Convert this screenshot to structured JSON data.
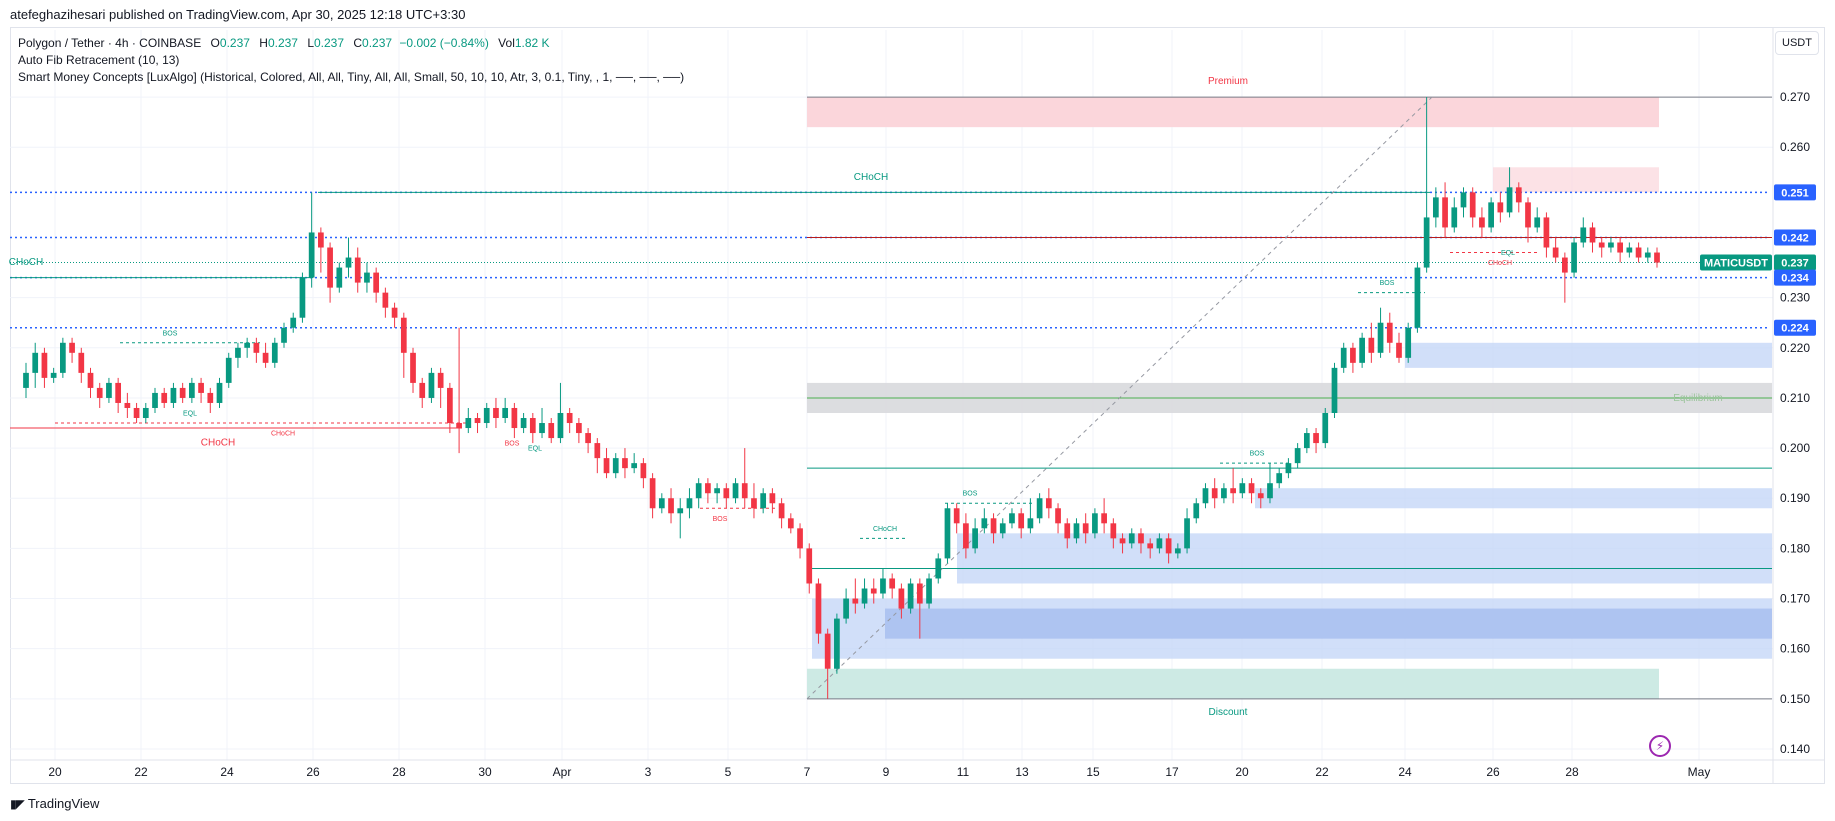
{
  "publisher": "atefeghazihesari published on TradingView.com, Apr 30, 2025 12:18 UTC+3:30",
  "legend": {
    "symbol_line": "Polygon / Tether · 4h · COINBASE",
    "o_label": "O",
    "o": "0.237",
    "h_label": "H",
    "h": "0.237",
    "l_label": "L",
    "l": "0.237",
    "c_label": "C",
    "c": "0.237",
    "change": "−0.002 (−0.84%)",
    "vol_label": "Vol",
    "vol": "1.82 K",
    "indicator1": "Auto Fib Retracement (10, 13)",
    "indicator2": "Smart Money Concepts [LuxAlgo] (Historical, Colored, All, All, Tiny, All, All, Small, 50, 10, 10, Atr, 3, 0.1, Tiny, , 1, ──, ──, ──)"
  },
  "currency_button": "USDT",
  "brand": "TradingView",
  "colors": {
    "up": "#089981",
    "down": "#f23645",
    "blue_line": "#2962ff",
    "ob_blue": "#c5d7f8",
    "premium": "#fbd6db",
    "discount": "#cdeae4"
  },
  "chart_data": {
    "type": "candlestick",
    "symbol": "MATICUSDT",
    "y_range": [
      0.138,
      0.275
    ],
    "y_ticks": [
      "0.270",
      "0.260",
      "0.230",
      "0.220",
      "0.210",
      "0.200",
      "0.190",
      "0.180",
      "0.170",
      "0.160",
      "0.150",
      "0.140"
    ],
    "x_ticks": [
      "20",
      "22",
      "24",
      "26",
      "28",
      "30",
      "Apr",
      "3",
      "5",
      "7",
      "9",
      "11",
      "13",
      "15",
      "17",
      "20",
      "22",
      "24",
      "26",
      "28",
      "May"
    ],
    "price_labels": [
      {
        "text": "0.251",
        "value": 0.251,
        "color": "#2962ff"
      },
      {
        "text": "0.242",
        "value": 0.242,
        "color": "#2962ff"
      },
      {
        "text": "MATICUSDT",
        "value": 0.237,
        "color": "#089981"
      },
      {
        "text": "0.237",
        "value": 0.237,
        "color": "#089981"
      },
      {
        "text": "0.234",
        "value": 0.234,
        "color": "#2962ff"
      },
      {
        "text": "0.224",
        "value": 0.224,
        "color": "#2962ff"
      }
    ],
    "zone_labels": [
      "Premium",
      "Discount",
      "Equilibrium"
    ],
    "structure_labels": [
      "CHoCH",
      "CHoCH",
      "CHoCH",
      "CHoCH",
      "CHoCH",
      "CHoCH",
      "BOS",
      "BOS",
      "BOS",
      "BOS",
      "BOS",
      "BOS",
      "EQL",
      "EQL",
      "EQL"
    ],
    "candles": [
      [
        0.212,
        0.215,
        0.21,
        0.217
      ],
      [
        0.215,
        0.219,
        0.212,
        0.221
      ],
      [
        0.219,
        0.214,
        0.212,
        0.22
      ],
      [
        0.214,
        0.215,
        0.213,
        0.216
      ],
      [
        0.215,
        0.221,
        0.214,
        0.222
      ],
      [
        0.221,
        0.219,
        0.217,
        0.222
      ],
      [
        0.219,
        0.215,
        0.213,
        0.22
      ],
      [
        0.215,
        0.212,
        0.21,
        0.216
      ],
      [
        0.212,
        0.21,
        0.208,
        0.213
      ],
      [
        0.21,
        0.213,
        0.209,
        0.214
      ],
      [
        0.213,
        0.209,
        0.207,
        0.214
      ],
      [
        0.209,
        0.208,
        0.206,
        0.211
      ],
      [
        0.208,
        0.206,
        0.205,
        0.209
      ],
      [
        0.206,
        0.208,
        0.205,
        0.209
      ],
      [
        0.208,
        0.211,
        0.207,
        0.212
      ],
      [
        0.211,
        0.209,
        0.208,
        0.212
      ],
      [
        0.209,
        0.212,
        0.208,
        0.213
      ],
      [
        0.212,
        0.21,
        0.209,
        0.213
      ],
      [
        0.21,
        0.213,
        0.209,
        0.214
      ],
      [
        0.213,
        0.211,
        0.209,
        0.214
      ],
      [
        0.211,
        0.209,
        0.207,
        0.212
      ],
      [
        0.209,
        0.213,
        0.208,
        0.214
      ],
      [
        0.213,
        0.218,
        0.212,
        0.219
      ],
      [
        0.218,
        0.22,
        0.216,
        0.221
      ],
      [
        0.22,
        0.221,
        0.218,
        0.222
      ],
      [
        0.221,
        0.219,
        0.217,
        0.222
      ],
      [
        0.219,
        0.217,
        0.216,
        0.221
      ],
      [
        0.217,
        0.221,
        0.216,
        0.222
      ],
      [
        0.221,
        0.224,
        0.22,
        0.225
      ],
      [
        0.224,
        0.226,
        0.223,
        0.227
      ],
      [
        0.226,
        0.234,
        0.225,
        0.235
      ],
      [
        0.234,
        0.243,
        0.232,
        0.251
      ],
      [
        0.243,
        0.24,
        0.235,
        0.244
      ],
      [
        0.24,
        0.232,
        0.229,
        0.241
      ],
      [
        0.232,
        0.236,
        0.231,
        0.237
      ],
      [
        0.236,
        0.238,
        0.234,
        0.242
      ],
      [
        0.238,
        0.233,
        0.231,
        0.24
      ],
      [
        0.233,
        0.235,
        0.231,
        0.237
      ],
      [
        0.235,
        0.231,
        0.229,
        0.236
      ],
      [
        0.231,
        0.228,
        0.226,
        0.232
      ],
      [
        0.228,
        0.226,
        0.224,
        0.229
      ],
      [
        0.226,
        0.219,
        0.214,
        0.227
      ],
      [
        0.219,
        0.213,
        0.211,
        0.22
      ],
      [
        0.213,
        0.21,
        0.208,
        0.214
      ],
      [
        0.21,
        0.215,
        0.209,
        0.216
      ],
      [
        0.215,
        0.212,
        0.208,
        0.216
      ],
      [
        0.212,
        0.205,
        0.203,
        0.213
      ],
      [
        0.205,
        0.204,
        0.199,
        0.224
      ],
      [
        0.204,
        0.206,
        0.203,
        0.208
      ],
      [
        0.206,
        0.205,
        0.203,
        0.207
      ],
      [
        0.205,
        0.208,
        0.204,
        0.209
      ],
      [
        0.208,
        0.206,
        0.204,
        0.21
      ],
      [
        0.206,
        0.208,
        0.205,
        0.21
      ],
      [
        0.208,
        0.204,
        0.202,
        0.209
      ],
      [
        0.204,
        0.206,
        0.203,
        0.207
      ],
      [
        0.206,
        0.203,
        0.201,
        0.207
      ],
      [
        0.203,
        0.205,
        0.202,
        0.208
      ],
      [
        0.205,
        0.202,
        0.201,
        0.206
      ],
      [
        0.202,
        0.207,
        0.201,
        0.213
      ],
      [
        0.207,
        0.205,
        0.203,
        0.208
      ],
      [
        0.205,
        0.203,
        0.201,
        0.206
      ],
      [
        0.203,
        0.201,
        0.199,
        0.204
      ],
      [
        0.201,
        0.198,
        0.195,
        0.202
      ],
      [
        0.198,
        0.195,
        0.194,
        0.2
      ],
      [
        0.195,
        0.198,
        0.194,
        0.199
      ],
      [
        0.198,
        0.196,
        0.194,
        0.2
      ],
      [
        0.196,
        0.197,
        0.195,
        0.199
      ],
      [
        0.197,
        0.194,
        0.192,
        0.198
      ],
      [
        0.194,
        0.188,
        0.186,
        0.195
      ],
      [
        0.188,
        0.19,
        0.187,
        0.191
      ],
      [
        0.19,
        0.187,
        0.185,
        0.192
      ],
      [
        0.187,
        0.188,
        0.182,
        0.19
      ],
      [
        0.188,
        0.19,
        0.186,
        0.192
      ],
      [
        0.19,
        0.193,
        0.188,
        0.194
      ],
      [
        0.193,
        0.191,
        0.189,
        0.194
      ],
      [
        0.191,
        0.192,
        0.189,
        0.193
      ],
      [
        0.192,
        0.19,
        0.188,
        0.193
      ],
      [
        0.19,
        0.193,
        0.189,
        0.194
      ],
      [
        0.193,
        0.19,
        0.188,
        0.2
      ],
      [
        0.19,
        0.188,
        0.186,
        0.193
      ],
      [
        0.188,
        0.191,
        0.187,
        0.192
      ],
      [
        0.191,
        0.189,
        0.187,
        0.192
      ],
      [
        0.189,
        0.186,
        0.184,
        0.19
      ],
      [
        0.186,
        0.184,
        0.183,
        0.187
      ],
      [
        0.184,
        0.18,
        0.178,
        0.185
      ],
      [
        0.18,
        0.173,
        0.171,
        0.181
      ],
      [
        0.173,
        0.163,
        0.161,
        0.174
      ],
      [
        0.163,
        0.156,
        0.15,
        0.164
      ],
      [
        0.156,
        0.166,
        0.155,
        0.167
      ],
      [
        0.166,
        0.17,
        0.165,
        0.172
      ],
      [
        0.17,
        0.169,
        0.167,
        0.174
      ],
      [
        0.169,
        0.172,
        0.168,
        0.174
      ],
      [
        0.172,
        0.171,
        0.169,
        0.174
      ],
      [
        0.171,
        0.174,
        0.17,
        0.176
      ],
      [
        0.174,
        0.172,
        0.17,
        0.175
      ],
      [
        0.172,
        0.168,
        0.166,
        0.173
      ],
      [
        0.168,
        0.173,
        0.167,
        0.174
      ],
      [
        0.173,
        0.169,
        0.162,
        0.174
      ],
      [
        0.169,
        0.174,
        0.168,
        0.175
      ],
      [
        0.174,
        0.178,
        0.173,
        0.179
      ],
      [
        0.178,
        0.188,
        0.177,
        0.189
      ],
      [
        0.188,
        0.185,
        0.183,
        0.189
      ],
      [
        0.185,
        0.18,
        0.178,
        0.187
      ],
      [
        0.18,
        0.184,
        0.179,
        0.186
      ],
      [
        0.184,
        0.186,
        0.183,
        0.188
      ],
      [
        0.186,
        0.183,
        0.181,
        0.187
      ],
      [
        0.183,
        0.185,
        0.182,
        0.186
      ],
      [
        0.185,
        0.187,
        0.184,
        0.188
      ],
      [
        0.187,
        0.184,
        0.182,
        0.188
      ],
      [
        0.184,
        0.186,
        0.183,
        0.19
      ],
      [
        0.186,
        0.19,
        0.185,
        0.191
      ],
      [
        0.19,
        0.188,
        0.186,
        0.192
      ],
      [
        0.188,
        0.185,
        0.183,
        0.189
      ],
      [
        0.185,
        0.182,
        0.18,
        0.186
      ],
      [
        0.182,
        0.185,
        0.181,
        0.186
      ],
      [
        0.185,
        0.183,
        0.181,
        0.187
      ],
      [
        0.183,
        0.187,
        0.182,
        0.188
      ],
      [
        0.187,
        0.185,
        0.183,
        0.19
      ],
      [
        0.185,
        0.182,
        0.18,
        0.186
      ],
      [
        0.182,
        0.181,
        0.179,
        0.183
      ],
      [
        0.181,
        0.183,
        0.18,
        0.184
      ],
      [
        0.183,
        0.181,
        0.179,
        0.184
      ],
      [
        0.181,
        0.18,
        0.178,
        0.182
      ],
      [
        0.18,
        0.182,
        0.179,
        0.183
      ],
      [
        0.182,
        0.179,
        0.177,
        0.183
      ],
      [
        0.179,
        0.18,
        0.178,
        0.181
      ],
      [
        0.18,
        0.186,
        0.179,
        0.188
      ],
      [
        0.186,
        0.189,
        0.185,
        0.19
      ],
      [
        0.189,
        0.192,
        0.188,
        0.193
      ],
      [
        0.192,
        0.19,
        0.188,
        0.194
      ],
      [
        0.19,
        0.192,
        0.189,
        0.193
      ],
      [
        0.192,
        0.191,
        0.189,
        0.196
      ],
      [
        0.191,
        0.193,
        0.19,
        0.194
      ],
      [
        0.193,
        0.191,
        0.189,
        0.194
      ],
      [
        0.191,
        0.19,
        0.188,
        0.192
      ],
      [
        0.19,
        0.193,
        0.189,
        0.197
      ],
      [
        0.193,
        0.195,
        0.192,
        0.196
      ],
      [
        0.195,
        0.197,
        0.194,
        0.198
      ],
      [
        0.197,
        0.2,
        0.196,
        0.201
      ],
      [
        0.2,
        0.203,
        0.199,
        0.204
      ],
      [
        0.203,
        0.201,
        0.199,
        0.204
      ],
      [
        0.201,
        0.207,
        0.2,
        0.208
      ],
      [
        0.207,
        0.216,
        0.206,
        0.217
      ],
      [
        0.216,
        0.22,
        0.215,
        0.221
      ],
      [
        0.22,
        0.217,
        0.215,
        0.221
      ],
      [
        0.217,
        0.222,
        0.216,
        0.223
      ],
      [
        0.222,
        0.219,
        0.217,
        0.225
      ],
      [
        0.219,
        0.225,
        0.218,
        0.228
      ],
      [
        0.225,
        0.221,
        0.219,
        0.227
      ],
      [
        0.221,
        0.218,
        0.217,
        0.223
      ],
      [
        0.218,
        0.224,
        0.217,
        0.225
      ],
      [
        0.224,
        0.236,
        0.223,
        0.237
      ],
      [
        0.236,
        0.246,
        0.235,
        0.27
      ],
      [
        0.246,
        0.25,
        0.244,
        0.252
      ],
      [
        0.25,
        0.244,
        0.242,
        0.253
      ],
      [
        0.244,
        0.248,
        0.243,
        0.25
      ],
      [
        0.248,
        0.251,
        0.246,
        0.252
      ],
      [
        0.251,
        0.246,
        0.244,
        0.252
      ],
      [
        0.246,
        0.244,
        0.242,
        0.248
      ],
      [
        0.244,
        0.249,
        0.243,
        0.25
      ],
      [
        0.249,
        0.247,
        0.245,
        0.251
      ],
      [
        0.247,
        0.252,
        0.246,
        0.256
      ],
      [
        0.252,
        0.249,
        0.247,
        0.253
      ],
      [
        0.249,
        0.244,
        0.241,
        0.25
      ],
      [
        0.244,
        0.246,
        0.243,
        0.248
      ],
      [
        0.246,
        0.24,
        0.238,
        0.247
      ],
      [
        0.24,
        0.238,
        0.237,
        0.242
      ],
      [
        0.238,
        0.235,
        0.229,
        0.239
      ],
      [
        0.235,
        0.241,
        0.234,
        0.242
      ],
      [
        0.241,
        0.244,
        0.24,
        0.246
      ],
      [
        0.244,
        0.241,
        0.239,
        0.245
      ],
      [
        0.241,
        0.24,
        0.238,
        0.242
      ],
      [
        0.24,
        0.241,
        0.239,
        0.242
      ],
      [
        0.241,
        0.239,
        0.237,
        0.242
      ],
      [
        0.239,
        0.24,
        0.238,
        0.241
      ],
      [
        0.24,
        0.238,
        0.237,
        0.241
      ],
      [
        0.238,
        0.239,
        0.237,
        0.24
      ],
      [
        0.239,
        0.237,
        0.236,
        0.24
      ]
    ]
  }
}
